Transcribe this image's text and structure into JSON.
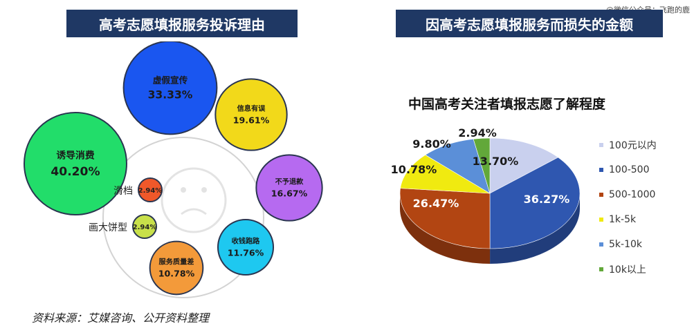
{
  "watermark": "@微信公众号：飞跑的鹿",
  "left_title": "高考志愿填报服务投诉理由",
  "right_title": "因高考志愿填报服务而损失的金额",
  "footer": "资料来源：艾媒咨询、公开资料整理",
  "chart_data": [
    {
      "type": "bubble",
      "title": "高考志愿填报服务投诉理由",
      "items": [
        {
          "label": "诱导消费",
          "value": 40.2,
          "display": "40.20%",
          "color": "#22dd6a",
          "label_outside": false
        },
        {
          "label": "虚假宣传",
          "value": 33.33,
          "display": "33.33%",
          "color": "#1a56f0",
          "label_outside": false
        },
        {
          "label": "信息有误",
          "value": 19.61,
          "display": "19.61%",
          "color": "#f2d91a",
          "label_outside": false
        },
        {
          "label": "不予退款",
          "value": 16.67,
          "display": "16.67%",
          "color": "#b66af0",
          "label_outside": false
        },
        {
          "label": "收钱跑路",
          "value": 11.76,
          "display": "11.76%",
          "color": "#1ec8f0",
          "label_outside": false
        },
        {
          "label": "服务质量差",
          "value": 10.78,
          "display": "10.78%",
          "color": "#f39a3a",
          "label_outside": false
        },
        {
          "label": "滑档",
          "value": 2.94,
          "display": "2.94%",
          "color": "#f0582a",
          "label_outside": true
        },
        {
          "label": "画大饼型",
          "value": 2.94,
          "display": "2.94%",
          "color": "#c8e04a",
          "label_outside": true
        }
      ]
    },
    {
      "type": "pie",
      "title": "中国高考关注者填报志愿了解程度",
      "legend_position": "right",
      "slices": [
        {
          "label": "100元以内",
          "value": 13.7,
          "display": "13.70%",
          "color": "#c9d0ee"
        },
        {
          "label": "100-500",
          "value": 36.27,
          "display": "36.27%",
          "color": "#2f57b0"
        },
        {
          "label": "500-1000",
          "value": 26.47,
          "display": "26.47%",
          "color": "#b24512"
        },
        {
          "label": "1k-5k",
          "value": 10.78,
          "display": "10.78%",
          "color": "#f0ea10"
        },
        {
          "label": "5k-10k",
          "value": 9.8,
          "display": "9.80%",
          "color": "#5b8fd8"
        },
        {
          "label": "10k以上",
          "value": 2.94,
          "display": "2.94%",
          "color": "#62a83a"
        }
      ]
    }
  ]
}
